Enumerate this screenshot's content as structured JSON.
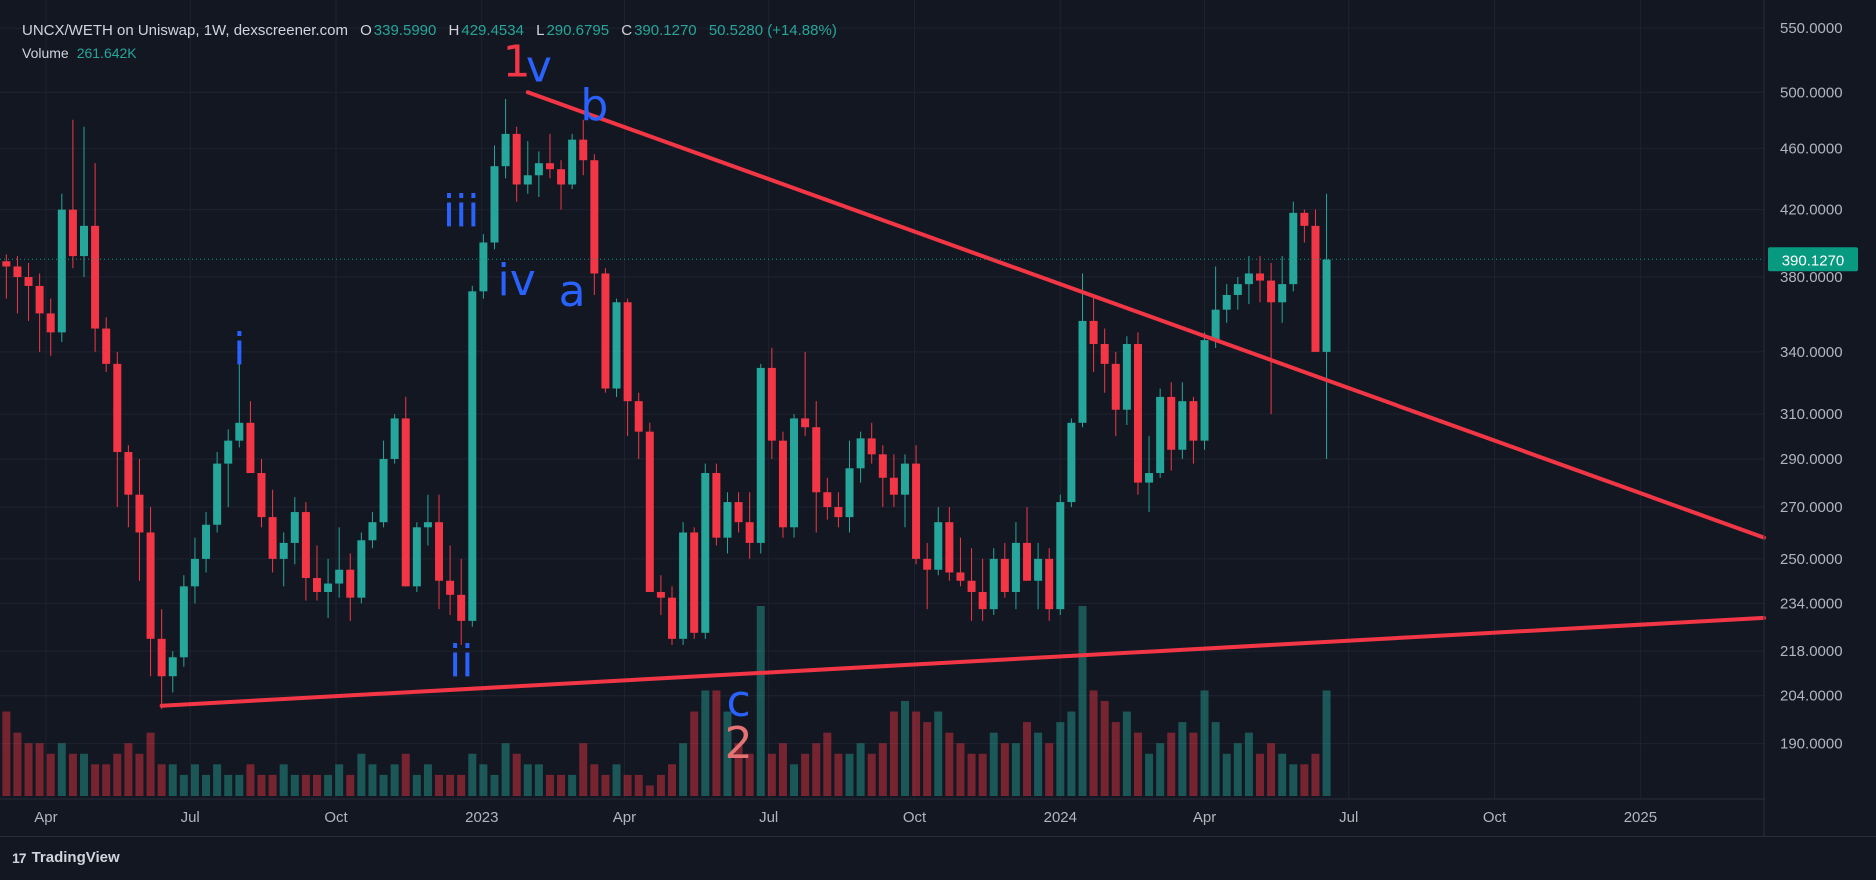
{
  "header": {
    "symbol_line": "UNCX/WETH on Uniswap, 1W, dexscreener.com",
    "o_label": "O",
    "o_value": "339.5990",
    "h_label": "H",
    "h_value": "429.4534",
    "l_label": "L",
    "l_value": "290.6795",
    "c_label": "C",
    "c_value": "390.1270",
    "change": "50.5280 (+14.88%)",
    "volume_label": "Volume",
    "volume_value": "261.642K"
  },
  "brand": {
    "name": "TradingView",
    "logo_text": "17"
  },
  "colors": {
    "background": "#131722",
    "up": "#26a69a",
    "down": "#f23645",
    "trendline": "#f23645",
    "wave_label": "#2962ff",
    "wave_major": "#f23645",
    "wave_two": "#e57373",
    "price_tag": "#089981"
  },
  "chart_data": {
    "type": "candlestick",
    "y_scale": "log",
    "ylim": [
      180,
      565
    ],
    "y_ticks": [
      190,
      204,
      218,
      234,
      250,
      270,
      290,
      310,
      340,
      380,
      420,
      460,
      500,
      550
    ],
    "y_tick_labels": [
      "190.0000",
      "204.0000",
      "218.0000",
      "234.0000",
      "250.0000",
      "270.0000",
      "290.0000",
      "310.0000",
      "340.0000",
      "380.0000",
      "420.0000",
      "460.0000",
      "500.0000",
      "550.0000"
    ],
    "x_ticks": [
      {
        "date": "2022-04-01",
        "label": "Apr"
      },
      {
        "date": "2022-07-01",
        "label": "Jul"
      },
      {
        "date": "2022-10-01",
        "label": "Oct"
      },
      {
        "date": "2023-01-01",
        "label": "2023"
      },
      {
        "date": "2023-04-01",
        "label": "Apr"
      },
      {
        "date": "2023-07-01",
        "label": "Jul"
      },
      {
        "date": "2023-10-01",
        "label": "Oct"
      },
      {
        "date": "2024-01-01",
        "label": "2024"
      },
      {
        "date": "2024-04-01",
        "label": "Apr"
      },
      {
        "date": "2024-07-01",
        "label": "Jul"
      },
      {
        "date": "2024-10-01",
        "label": "Oct"
      },
      {
        "date": "2025-01-01",
        "label": "2025"
      }
    ],
    "xlim": [
      "2022-03-03",
      "2025-03-20"
    ],
    "first_candle_date": "2022-03-07",
    "last_price": 390.127,
    "last_price_label": "390.1270",
    "candles": [
      [
        389,
        393,
        368,
        386,
        8
      ],
      [
        386,
        392,
        360,
        380,
        6
      ],
      [
        380,
        388,
        356,
        375,
        5
      ],
      [
        375,
        382,
        340,
        360,
        5
      ],
      [
        360,
        368,
        338,
        350,
        4
      ],
      [
        350,
        430,
        345,
        420,
        5
      ],
      [
        420,
        480,
        385,
        392,
        4
      ],
      [
        392,
        475,
        380,
        410,
        4
      ],
      [
        410,
        450,
        340,
        352,
        3
      ],
      [
        352,
        358,
        330,
        334,
        3
      ],
      [
        334,
        340,
        270,
        293,
        4
      ],
      [
        293,
        296,
        262,
        275,
        5
      ],
      [
        275,
        290,
        242,
        260,
        4
      ],
      [
        260,
        270,
        210,
        222,
        6
      ],
      [
        222,
        232,
        200,
        210,
        3
      ],
      [
        210,
        218,
        205,
        216,
        3
      ],
      [
        216,
        244,
        213,
        240,
        2
      ],
      [
        240,
        258,
        234,
        250,
        3
      ],
      [
        250,
        268,
        245,
        263,
        2
      ],
      [
        263,
        293,
        260,
        288,
        3
      ],
      [
        288,
        303,
        270,
        298,
        2
      ],
      [
        298,
        334,
        295,
        306,
        2
      ],
      [
        306,
        316,
        285,
        284,
        3
      ],
      [
        284,
        290,
        262,
        266,
        2
      ],
      [
        266,
        277,
        245,
        250,
        2
      ],
      [
        250,
        260,
        240,
        256,
        3
      ],
      [
        256,
        274,
        248,
        268,
        2
      ],
      [
        268,
        272,
        235,
        243,
        2
      ],
      [
        243,
        255,
        235,
        238,
        2
      ],
      [
        238,
        250,
        229,
        241,
        2
      ],
      [
        241,
        262,
        236,
        246,
        3
      ],
      [
        246,
        252,
        228,
        236,
        2
      ],
      [
        236,
        260,
        234,
        257,
        4
      ],
      [
        257,
        268,
        254,
        264,
        3
      ],
      [
        264,
        298,
        262,
        290,
        2
      ],
      [
        290,
        310,
        288,
        308,
        3
      ],
      [
        308,
        318,
        240,
        240,
        4
      ],
      [
        240,
        264,
        238,
        262,
        2
      ],
      [
        262,
        275,
        255,
        264,
        3
      ],
      [
        264,
        275,
        232,
        242,
        2
      ],
      [
        242,
        255,
        230,
        237,
        2
      ],
      [
        237,
        250,
        220,
        228,
        2
      ],
      [
        228,
        375,
        226,
        372,
        4
      ],
      [
        372,
        405,
        368,
        400,
        3
      ],
      [
        400,
        462,
        396,
        448,
        2
      ],
      [
        448,
        495,
        440,
        470,
        5
      ],
      [
        470,
        475,
        425,
        436,
        4
      ],
      [
        436,
        465,
        430,
        442,
        3
      ],
      [
        442,
        458,
        428,
        450,
        3
      ],
      [
        450,
        470,
        440,
        446,
        2
      ],
      [
        446,
        452,
        420,
        436,
        2
      ],
      [
        436,
        470,
        433,
        466,
        2
      ],
      [
        466,
        480,
        442,
        452,
        5
      ],
      [
        452,
        456,
        370,
        382,
        3
      ],
      [
        382,
        385,
        320,
        322,
        2
      ],
      [
        322,
        368,
        318,
        366,
        3
      ],
      [
        366,
        368,
        300,
        316,
        2
      ],
      [
        316,
        320,
        290,
        302,
        2
      ],
      [
        302,
        306,
        240,
        238,
        1
      ],
      [
        238,
        244,
        230,
        236,
        2
      ],
      [
        236,
        240,
        220,
        222,
        3
      ],
      [
        222,
        264,
        220,
        260,
        5
      ],
      [
        260,
        262,
        222,
        224,
        8
      ],
      [
        224,
        288,
        222,
        284,
        10
      ],
      [
        284,
        288,
        255,
        258,
        10
      ],
      [
        258,
        276,
        252,
        272,
        8
      ],
      [
        272,
        276,
        260,
        264,
        5
      ],
      [
        264,
        276,
        250,
        256,
        4
      ],
      [
        256,
        334,
        252,
        332,
        18
      ],
      [
        332,
        342,
        290,
        298,
        4
      ],
      [
        298,
        302,
        258,
        262,
        5
      ],
      [
        262,
        310,
        258,
        308,
        3
      ],
      [
        308,
        340,
        300,
        304,
        4
      ],
      [
        304,
        316,
        260,
        276,
        5
      ],
      [
        276,
        282,
        265,
        270,
        6
      ],
      [
        270,
        276,
        262,
        266,
        4
      ],
      [
        266,
        298,
        260,
        286,
        4
      ],
      [
        286,
        302,
        280,
        299,
        5
      ],
      [
        299,
        306,
        288,
        292,
        4
      ],
      [
        292,
        296,
        270,
        282,
        5
      ],
      [
        282,
        292,
        270,
        275,
        8
      ],
      [
        275,
        292,
        262,
        288,
        9
      ],
      [
        288,
        296,
        248,
        250,
        8
      ],
      [
        250,
        256,
        232,
        246,
        7
      ],
      [
        246,
        270,
        244,
        264,
        8
      ],
      [
        264,
        270,
        242,
        245,
        6
      ],
      [
        245,
        258,
        240,
        242,
        5
      ],
      [
        242,
        254,
        228,
        238,
        4
      ],
      [
        238,
        250,
        228,
        232,
        4
      ],
      [
        232,
        254,
        230,
        250,
        6
      ],
      [
        250,
        256,
        236,
        238,
        5
      ],
      [
        238,
        264,
        232,
        256,
        5
      ],
      [
        256,
        270,
        242,
        242,
        7
      ],
      [
        242,
        256,
        232,
        250,
        6
      ],
      [
        250,
        254,
        228,
        232,
        5
      ],
      [
        232,
        275,
        230,
        272,
        7
      ],
      [
        272,
        308,
        270,
        306,
        8
      ],
      [
        306,
        382,
        304,
        356,
        18
      ],
      [
        356,
        370,
        330,
        344,
        10
      ],
      [
        344,
        352,
        320,
        334,
        9
      ],
      [
        334,
        340,
        300,
        312,
        7
      ],
      [
        312,
        348,
        305,
        344,
        8
      ],
      [
        344,
        350,
        275,
        280,
        6
      ],
      [
        280,
        300,
        268,
        284,
        4
      ],
      [
        284,
        322,
        282,
        318,
        5
      ],
      [
        318,
        325,
        285,
        294,
        6
      ],
      [
        294,
        325,
        290,
        316,
        7
      ],
      [
        316,
        318,
        288,
        298,
        6
      ],
      [
        298,
        350,
        294,
        346,
        10
      ],
      [
        346,
        386,
        342,
        362,
        7
      ],
      [
        362,
        376,
        355,
        370,
        4
      ],
      [
        370,
        380,
        362,
        376,
        5
      ],
      [
        376,
        392,
        365,
        382,
        6
      ],
      [
        382,
        392,
        366,
        378,
        4
      ],
      [
        378,
        388,
        310,
        366,
        5
      ],
      [
        366,
        392,
        355,
        376,
        4
      ],
      [
        376,
        425,
        372,
        418,
        3
      ],
      [
        418,
        420,
        400,
        410,
        3
      ],
      [
        410,
        420,
        340,
        340,
        4
      ],
      [
        340,
        430,
        290,
        390,
        10
      ]
    ],
    "trendlines": [
      {
        "from": {
          "date": "2023-01-30",
          "price": 500
        },
        "to": {
          "date": "2025-03-20",
          "price": 258
        }
      },
      {
        "from": {
          "date": "2022-06-13",
          "price": 201
        },
        "to": {
          "date": "2025-03-20",
          "price": 229
        }
      }
    ],
    "annotations": [
      {
        "text": "1",
        "date": "2023-01-23",
        "price": 512,
        "color": "major"
      },
      {
        "text": "v",
        "date": "2023-02-06",
        "price": 508,
        "color": "wave"
      },
      {
        "text": "b",
        "date": "2023-03-13",
        "price": 480,
        "color": "wave"
      },
      {
        "text": "iii",
        "date": "2022-12-19",
        "price": 410,
        "color": "wave"
      },
      {
        "text": "iv",
        "date": "2023-01-23",
        "price": 370,
        "color": "wave"
      },
      {
        "text": "a",
        "date": "2023-02-27",
        "price": 364,
        "color": "wave"
      },
      {
        "text": "i",
        "date": "2022-08-01",
        "price": 334,
        "color": "wave"
      },
      {
        "text": "ii",
        "date": "2022-12-19",
        "price": 210,
        "color": "wave"
      },
      {
        "text": "c",
        "date": "2023-06-12",
        "price": 198,
        "color": "wave"
      },
      {
        "text": "2",
        "date": "2023-06-12",
        "price": 186,
        "color": "two"
      }
    ]
  }
}
